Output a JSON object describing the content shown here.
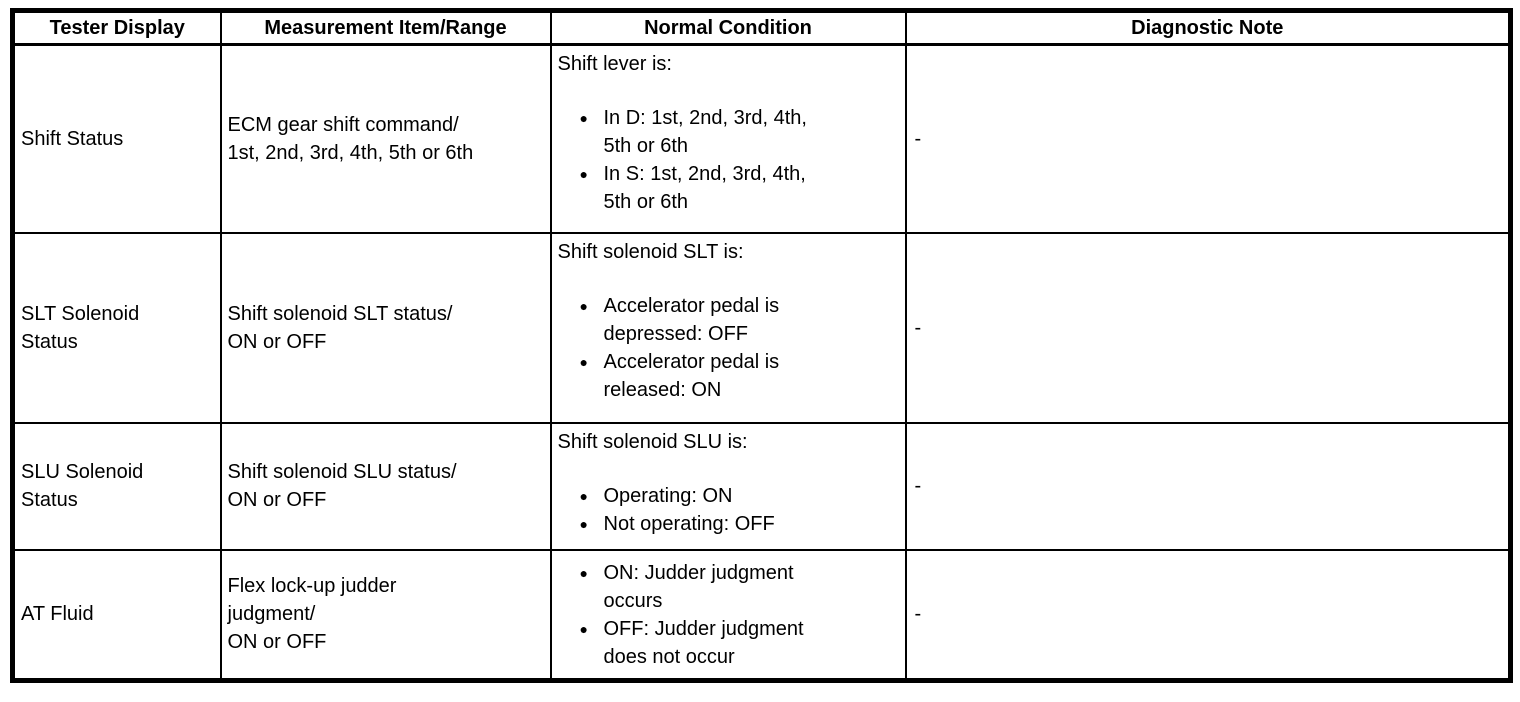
{
  "table": {
    "headers": {
      "tester_display": "Tester Display",
      "measurement_item_range": "Measurement Item/Range",
      "normal_condition": "Normal Condition",
      "diagnostic_note": "Diagnostic Note"
    },
    "bullet_glyph": "●",
    "rows": [
      {
        "tester_display": "Shift Status",
        "measurement_item_range": "ECM gear shift command/\n1st, 2nd, 3rd, 4th, 5th or 6th",
        "normal_condition": {
          "intro": "Shift lever is:",
          "bullets": [
            "In D: 1st, 2nd, 3rd, 4th,\n5th or 6th",
            "In S: 1st, 2nd, 3rd, 4th,\n5th or 6th"
          ]
        },
        "diagnostic_note": "-"
      },
      {
        "tester_display": "SLT Solenoid\nStatus",
        "measurement_item_range": "Shift solenoid SLT status/\nON or OFF",
        "normal_condition": {
          "intro": "Shift solenoid SLT is:",
          "bullets": [
            "Accelerator pedal is\ndepressed: OFF",
            "Accelerator pedal is\nreleased: ON"
          ]
        },
        "diagnostic_note": "-"
      },
      {
        "tester_display": "SLU Solenoid\nStatus",
        "measurement_item_range": "Shift solenoid SLU status/\nON or OFF",
        "normal_condition": {
          "intro": "Shift solenoid SLU is:",
          "bullets": [
            "Operating: ON",
            "Not operating: OFF"
          ]
        },
        "diagnostic_note": "-"
      },
      {
        "tester_display": "AT Fluid",
        "measurement_item_range": "Flex lock-up judder\njudgment/\nON or OFF",
        "normal_condition": {
          "intro": "",
          "bullets": [
            "ON: Judder judgment\noccurs",
            "OFF: Judder judgment\ndoes not occur"
          ]
        },
        "diagnostic_note": "-"
      }
    ]
  }
}
